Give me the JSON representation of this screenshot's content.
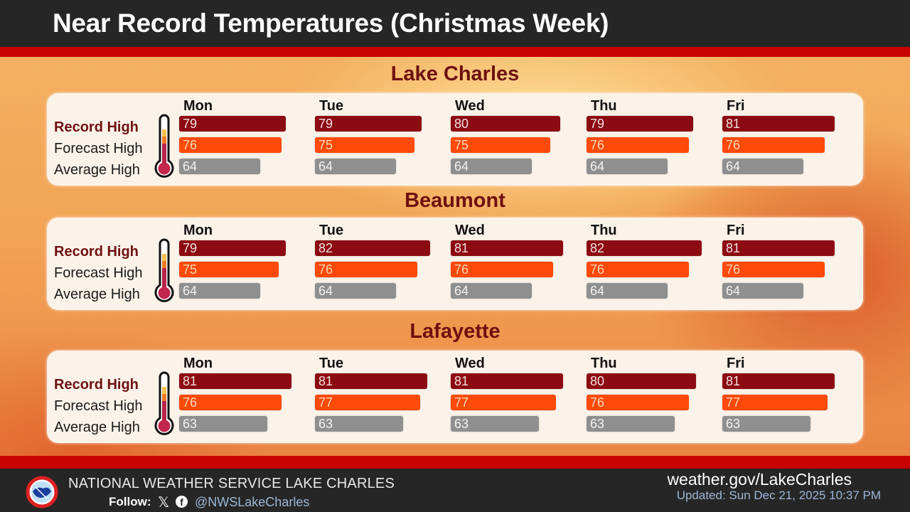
{
  "header": {
    "title": "Near Record Temperatures (Christmas Week)"
  },
  "row_labels": {
    "record": "Record High",
    "forecast": "Forecast High",
    "average": "Average High"
  },
  "days": [
    "Mon",
    "Tue",
    "Wed",
    "Thu",
    "Fri"
  ],
  "cities": [
    {
      "name": "Lake Charles",
      "record": [
        "79",
        "79",
        "80",
        "79",
        "81"
      ],
      "forecast": [
        "76",
        "75",
        "75",
        "76",
        "76"
      ],
      "average": [
        "64",
        "64",
        "64",
        "64",
        "64"
      ]
    },
    {
      "name": "Beaumont",
      "record": [
        "79",
        "82",
        "81",
        "82",
        "81"
      ],
      "forecast": [
        "75",
        "76",
        "76",
        "76",
        "76"
      ],
      "average": [
        "64",
        "64",
        "64",
        "64",
        "64"
      ]
    },
    {
      "name": "Lafayette",
      "record": [
        "81",
        "81",
        "81",
        "80",
        "81"
      ],
      "forecast": [
        "76",
        "77",
        "77",
        "76",
        "77"
      ],
      "average": [
        "63",
        "63",
        "63",
        "63",
        "63"
      ]
    }
  ],
  "colors": {
    "record": "#8c0a12",
    "forecast": "#ff4a0a",
    "average": "#8f8f8f",
    "accent_red": "#c80000",
    "header_bg": "#262626"
  },
  "footer": {
    "org": "NATIONAL WEATHER SERVICE LAKE CHARLES",
    "follow_label": "Follow:",
    "x_icon": "𝕏",
    "fb_icon": "f",
    "handle": "@NWSLakeCharles",
    "website": "weather.gov/LakeCharles",
    "updated": "Updated: Sun Dec 21, 2025 10:37 PM"
  },
  "chart_data": [
    {
      "type": "bar",
      "title": "Lake Charles",
      "categories": [
        "Mon",
        "Tue",
        "Wed",
        "Thu",
        "Fri"
      ],
      "series": [
        {
          "name": "Record High",
          "values": [
            79,
            79,
            80,
            79,
            81
          ]
        },
        {
          "name": "Forecast High",
          "values": [
            76,
            75,
            75,
            76,
            76
          ]
        },
        {
          "name": "Average High",
          "values": [
            64,
            64,
            64,
            64,
            64
          ]
        }
      ],
      "orientation": "horizontal",
      "unit": "°F"
    },
    {
      "type": "bar",
      "title": "Beaumont",
      "categories": [
        "Mon",
        "Tue",
        "Wed",
        "Thu",
        "Fri"
      ],
      "series": [
        {
          "name": "Record High",
          "values": [
            79,
            82,
            81,
            82,
            81
          ]
        },
        {
          "name": "Forecast High",
          "values": [
            75,
            76,
            76,
            76,
            76
          ]
        },
        {
          "name": "Average High",
          "values": [
            64,
            64,
            64,
            64,
            64
          ]
        }
      ],
      "orientation": "horizontal",
      "unit": "°F"
    },
    {
      "type": "bar",
      "title": "Lafayette",
      "categories": [
        "Mon",
        "Tue",
        "Wed",
        "Thu",
        "Fri"
      ],
      "series": [
        {
          "name": "Record High",
          "values": [
            81,
            81,
            81,
            80,
            81
          ]
        },
        {
          "name": "Forecast High",
          "values": [
            76,
            77,
            77,
            76,
            77
          ]
        },
        {
          "name": "Average High",
          "values": [
            63,
            63,
            63,
            63,
            63
          ]
        }
      ],
      "orientation": "horizontal",
      "unit": "°F"
    }
  ]
}
